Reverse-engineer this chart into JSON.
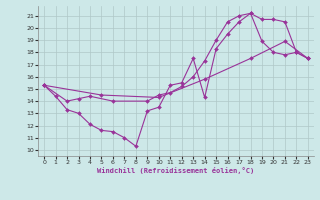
{
  "background_color": "#cde8e8",
  "grid_color": "#b0c8c8",
  "line_color": "#993399",
  "xlabel": "Windchill (Refroidissement éolien,°C)",
  "xlim": [
    -0.5,
    23.5
  ],
  "ylim": [
    9.5,
    21.8
  ],
  "xticks": [
    0,
    1,
    2,
    3,
    4,
    5,
    6,
    7,
    8,
    9,
    10,
    11,
    12,
    13,
    14,
    15,
    16,
    17,
    18,
    19,
    20,
    21,
    22,
    23
  ],
  "yticks": [
    10,
    11,
    12,
    13,
    14,
    15,
    16,
    17,
    18,
    19,
    20,
    21
  ],
  "series1": [
    [
      0,
      15.3
    ],
    [
      1,
      14.4
    ],
    [
      2,
      13.3
    ],
    [
      3,
      13.0
    ],
    [
      4,
      12.1
    ],
    [
      5,
      11.6
    ],
    [
      6,
      11.5
    ],
    [
      7,
      11.0
    ],
    [
      8,
      10.3
    ],
    [
      9,
      13.2
    ],
    [
      10,
      13.5
    ],
    [
      11,
      15.3
    ],
    [
      12,
      15.5
    ],
    [
      13,
      17.5
    ],
    [
      14,
      14.3
    ],
    [
      15,
      18.3
    ],
    [
      16,
      19.5
    ],
    [
      17,
      20.5
    ],
    [
      18,
      21.2
    ],
    [
      19,
      18.9
    ],
    [
      20,
      18.0
    ],
    [
      21,
      17.8
    ],
    [
      22,
      18.0
    ],
    [
      23,
      17.5
    ]
  ],
  "series2": [
    [
      0,
      15.3
    ],
    [
      2,
      14.0
    ],
    [
      3,
      14.2
    ],
    [
      4,
      14.4
    ],
    [
      6,
      14.0
    ],
    [
      9,
      14.0
    ],
    [
      10,
      14.5
    ],
    [
      11,
      14.7
    ],
    [
      12,
      15.2
    ],
    [
      13,
      16.0
    ],
    [
      14,
      17.3
    ],
    [
      15,
      19.0
    ],
    [
      16,
      20.5
    ],
    [
      17,
      21.0
    ],
    [
      18,
      21.2
    ],
    [
      19,
      20.7
    ],
    [
      20,
      20.7
    ],
    [
      21,
      20.5
    ],
    [
      22,
      18.0
    ],
    [
      23,
      17.5
    ]
  ],
  "series3": [
    [
      0,
      15.3
    ],
    [
      5,
      14.5
    ],
    [
      10,
      14.3
    ],
    [
      14,
      15.8
    ],
    [
      18,
      17.5
    ],
    [
      21,
      18.9
    ],
    [
      23,
      17.5
    ]
  ]
}
